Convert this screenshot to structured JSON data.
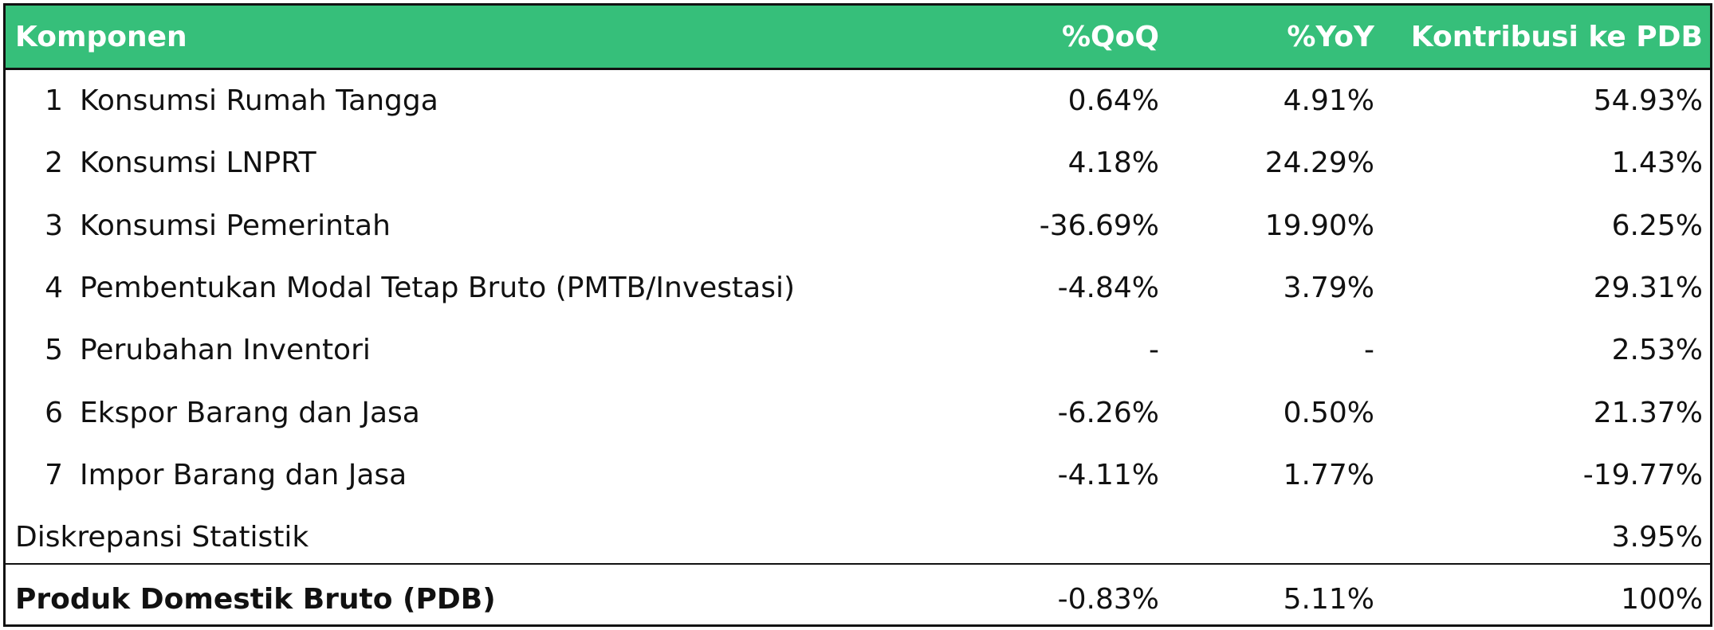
{
  "header": {
    "komponen": "Komponen",
    "qoq": "%QoQ",
    "yoy": "%YoY",
    "kontribusi": "Kontribusi ke PDB"
  },
  "rows": [
    {
      "no": "1",
      "komponen": "Konsumsi Rumah Tangga",
      "qoq": "0.64%",
      "yoy": "4.91%",
      "kontribusi": "54.93%"
    },
    {
      "no": "2",
      "komponen": "Konsumsi LNPRT",
      "qoq": "4.18%",
      "yoy": "24.29%",
      "kontribusi": "1.43%"
    },
    {
      "no": "3",
      "komponen": "Konsumsi Pemerintah",
      "qoq": "-36.69%",
      "yoy": "19.90%",
      "kontribusi": "6.25%"
    },
    {
      "no": "4",
      "komponen": "Pembentukan Modal Tetap Bruto (PMTB/Investasi)",
      "qoq": "-4.84%",
      "yoy": "3.79%",
      "kontribusi": "29.31%"
    },
    {
      "no": "5",
      "komponen": "Perubahan Inventori",
      "qoq": "-",
      "yoy": "-",
      "kontribusi": "2.53%"
    },
    {
      "no": "6",
      "komponen": "Ekspor Barang dan Jasa",
      "qoq": "-6.26%",
      "yoy": "0.50%",
      "kontribusi": "21.37%"
    },
    {
      "no": "7",
      "komponen": "Impor Barang dan Jasa",
      "qoq": "-4.11%",
      "yoy": "1.77%",
      "kontribusi": "-19.77%"
    }
  ],
  "discrepancy": {
    "komponen": "Diskrepansi Statistik",
    "kontribusi": "3.95%"
  },
  "total": {
    "komponen": "Produk Domestik Bruto (PDB)",
    "qoq": "-0.83%",
    "yoy": "5.11%",
    "kontribusi": "100%"
  }
}
